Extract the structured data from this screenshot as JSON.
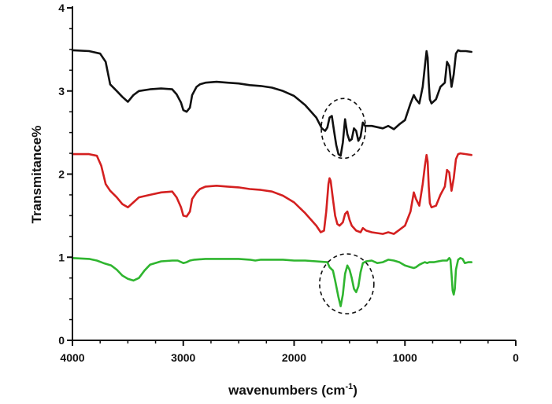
{
  "chart_data": {
    "type": "line",
    "xlabel": "wavenumbers (cm",
    "xlabel_sup": "-1",
    "xlabel_close": ")",
    "ylabel": "Transmitance%",
    "xlim": [
      4000,
      0
    ],
    "ylim": [
      0,
      4
    ],
    "x_reversed": true,
    "x_ticks": [
      4000,
      3000,
      2000,
      1000,
      0
    ],
    "y_ticks": [
      0,
      1,
      2,
      3,
      4
    ],
    "grid": false,
    "series": [
      {
        "color": "#111111",
        "points": [
          [
            4000,
            3.49
          ],
          [
            3850,
            3.48
          ],
          [
            3750,
            3.45
          ],
          [
            3700,
            3.35
          ],
          [
            3660,
            3.08
          ],
          [
            3600,
            3.0
          ],
          [
            3550,
            2.93
          ],
          [
            3500,
            2.87
          ],
          [
            3450,
            2.95
          ],
          [
            3400,
            3.0
          ],
          [
            3300,
            3.02
          ],
          [
            3200,
            3.03
          ],
          [
            3100,
            3.02
          ],
          [
            3060,
            2.96
          ],
          [
            3020,
            2.86
          ],
          [
            3000,
            2.77
          ],
          [
            2970,
            2.75
          ],
          [
            2940,
            2.8
          ],
          [
            2920,
            2.95
          ],
          [
            2880,
            3.05
          ],
          [
            2850,
            3.08
          ],
          [
            2800,
            3.1
          ],
          [
            2700,
            3.11
          ],
          [
            2600,
            3.1
          ],
          [
            2500,
            3.09
          ],
          [
            2400,
            3.07
          ],
          [
            2300,
            3.06
          ],
          [
            2200,
            3.04
          ],
          [
            2100,
            3.0
          ],
          [
            2000,
            2.94
          ],
          [
            1900,
            2.83
          ],
          [
            1800,
            2.68
          ],
          [
            1750,
            2.55
          ],
          [
            1720,
            2.52
          ],
          [
            1700,
            2.56
          ],
          [
            1680,
            2.68
          ],
          [
            1660,
            2.7
          ],
          [
            1640,
            2.52
          ],
          [
            1620,
            2.35
          ],
          [
            1600,
            2.24
          ],
          [
            1580,
            2.22
          ],
          [
            1560,
            2.38
          ],
          [
            1540,
            2.66
          ],
          [
            1520,
            2.48
          ],
          [
            1500,
            2.4
          ],
          [
            1480,
            2.42
          ],
          [
            1460,
            2.55
          ],
          [
            1440,
            2.52
          ],
          [
            1420,
            2.4
          ],
          [
            1400,
            2.45
          ],
          [
            1380,
            2.62
          ],
          [
            1360,
            2.58
          ],
          [
            1300,
            2.58
          ],
          [
            1200,
            2.55
          ],
          [
            1150,
            2.58
          ],
          [
            1100,
            2.54
          ],
          [
            1050,
            2.6
          ],
          [
            1000,
            2.65
          ],
          [
            950,
            2.85
          ],
          [
            920,
            2.95
          ],
          [
            900,
            2.9
          ],
          [
            870,
            2.85
          ],
          [
            840,
            3.05
          ],
          [
            820,
            3.3
          ],
          [
            805,
            3.48
          ],
          [
            795,
            3.4
          ],
          [
            785,
            3.1
          ],
          [
            775,
            2.9
          ],
          [
            760,
            2.85
          ],
          [
            720,
            2.9
          ],
          [
            680,
            3.05
          ],
          [
            640,
            3.1
          ],
          [
            620,
            3.35
          ],
          [
            600,
            3.3
          ],
          [
            580,
            3.05
          ],
          [
            560,
            3.2
          ],
          [
            540,
            3.45
          ],
          [
            520,
            3.49
          ],
          [
            500,
            3.48
          ],
          [
            450,
            3.48
          ],
          [
            400,
            3.47
          ]
        ]
      },
      {
        "color": "#d42020",
        "points": [
          [
            4000,
            2.24
          ],
          [
            3850,
            2.24
          ],
          [
            3780,
            2.22
          ],
          [
            3740,
            2.1
          ],
          [
            3700,
            1.88
          ],
          [
            3660,
            1.8
          ],
          [
            3600,
            1.72
          ],
          [
            3550,
            1.64
          ],
          [
            3500,
            1.6
          ],
          [
            3450,
            1.66
          ],
          [
            3400,
            1.72
          ],
          [
            3300,
            1.75
          ],
          [
            3200,
            1.78
          ],
          [
            3100,
            1.79
          ],
          [
            3060,
            1.72
          ],
          [
            3020,
            1.6
          ],
          [
            3000,
            1.5
          ],
          [
            2970,
            1.49
          ],
          [
            2940,
            1.55
          ],
          [
            2920,
            1.7
          ],
          [
            2880,
            1.78
          ],
          [
            2850,
            1.82
          ],
          [
            2800,
            1.85
          ],
          [
            2700,
            1.86
          ],
          [
            2600,
            1.85
          ],
          [
            2500,
            1.84
          ],
          [
            2400,
            1.82
          ],
          [
            2300,
            1.81
          ],
          [
            2200,
            1.79
          ],
          [
            2100,
            1.74
          ],
          [
            2000,
            1.66
          ],
          [
            1900,
            1.53
          ],
          [
            1800,
            1.38
          ],
          [
            1760,
            1.3
          ],
          [
            1730,
            1.32
          ],
          [
            1710,
            1.55
          ],
          [
            1690,
            1.88
          ],
          [
            1680,
            1.95
          ],
          [
            1670,
            1.92
          ],
          [
            1650,
            1.7
          ],
          [
            1630,
            1.5
          ],
          [
            1610,
            1.4
          ],
          [
            1590,
            1.38
          ],
          [
            1560,
            1.42
          ],
          [
            1540,
            1.52
          ],
          [
            1520,
            1.55
          ],
          [
            1500,
            1.45
          ],
          [
            1480,
            1.38
          ],
          [
            1460,
            1.35
          ],
          [
            1440,
            1.32
          ],
          [
            1400,
            1.3
          ],
          [
            1380,
            1.35
          ],
          [
            1350,
            1.32
          ],
          [
            1300,
            1.3
          ],
          [
            1200,
            1.28
          ],
          [
            1150,
            1.3
          ],
          [
            1100,
            1.28
          ],
          [
            1050,
            1.33
          ],
          [
            1000,
            1.38
          ],
          [
            950,
            1.55
          ],
          [
            920,
            1.78
          ],
          [
            900,
            1.7
          ],
          [
            870,
            1.62
          ],
          [
            840,
            1.88
          ],
          [
            820,
            2.1
          ],
          [
            805,
            2.23
          ],
          [
            795,
            2.15
          ],
          [
            785,
            1.85
          ],
          [
            775,
            1.65
          ],
          [
            760,
            1.6
          ],
          [
            720,
            1.62
          ],
          [
            680,
            1.75
          ],
          [
            640,
            1.85
          ],
          [
            620,
            2.05
          ],
          [
            600,
            2.02
          ],
          [
            580,
            1.8
          ],
          [
            560,
            1.95
          ],
          [
            540,
            2.18
          ],
          [
            520,
            2.24
          ],
          [
            500,
            2.25
          ],
          [
            450,
            2.24
          ],
          [
            400,
            2.23
          ]
        ]
      },
      {
        "color": "#2fb52f",
        "points": [
          [
            4000,
            0.99
          ],
          [
            3850,
            0.98
          ],
          [
            3780,
            0.96
          ],
          [
            3720,
            0.93
          ],
          [
            3650,
            0.9
          ],
          [
            3600,
            0.85
          ],
          [
            3550,
            0.78
          ],
          [
            3500,
            0.74
          ],
          [
            3450,
            0.72
          ],
          [
            3400,
            0.75
          ],
          [
            3350,
            0.84
          ],
          [
            3300,
            0.91
          ],
          [
            3200,
            0.95
          ],
          [
            3100,
            0.96
          ],
          [
            3050,
            0.96
          ],
          [
            3000,
            0.93
          ],
          [
            2970,
            0.94
          ],
          [
            2940,
            0.96
          ],
          [
            2900,
            0.97
          ],
          [
            2800,
            0.98
          ],
          [
            2700,
            0.98
          ],
          [
            2600,
            0.98
          ],
          [
            2500,
            0.98
          ],
          [
            2400,
            0.97
          ],
          [
            2350,
            0.96
          ],
          [
            2300,
            0.97
          ],
          [
            2200,
            0.97
          ],
          [
            2100,
            0.97
          ],
          [
            2000,
            0.96
          ],
          [
            1900,
            0.96
          ],
          [
            1800,
            0.95
          ],
          [
            1700,
            0.94
          ],
          [
            1680,
            0.88
          ],
          [
            1650,
            0.84
          ],
          [
            1630,
            0.72
          ],
          [
            1600,
            0.52
          ],
          [
            1580,
            0.41
          ],
          [
            1560,
            0.55
          ],
          [
            1540,
            0.8
          ],
          [
            1520,
            0.9
          ],
          [
            1500,
            0.85
          ],
          [
            1480,
            0.75
          ],
          [
            1460,
            0.62
          ],
          [
            1440,
            0.58
          ],
          [
            1420,
            0.65
          ],
          [
            1400,
            0.82
          ],
          [
            1380,
            0.93
          ],
          [
            1350,
            0.95
          ],
          [
            1300,
            0.96
          ],
          [
            1250,
            0.93
          ],
          [
            1200,
            0.94
          ],
          [
            1150,
            0.97
          ],
          [
            1100,
            0.96
          ],
          [
            1050,
            0.94
          ],
          [
            1000,
            0.9
          ],
          [
            950,
            0.88
          ],
          [
            920,
            0.87
          ],
          [
            900,
            0.88
          ],
          [
            870,
            0.91
          ],
          [
            840,
            0.93
          ],
          [
            820,
            0.94
          ],
          [
            800,
            0.93
          ],
          [
            780,
            0.94
          ],
          [
            740,
            0.94
          ],
          [
            700,
            0.95
          ],
          [
            660,
            0.96
          ],
          [
            620,
            0.96
          ],
          [
            600,
            0.99
          ],
          [
            590,
            0.97
          ],
          [
            580,
            0.8
          ],
          [
            570,
            0.6
          ],
          [
            560,
            0.55
          ],
          [
            550,
            0.62
          ],
          [
            540,
            0.85
          ],
          [
            520,
            0.97
          ],
          [
            500,
            0.99
          ],
          [
            480,
            0.98
          ],
          [
            460,
            0.93
          ],
          [
            430,
            0.94
          ],
          [
            400,
            0.94
          ]
        ]
      }
    ],
    "annotations": [
      {
        "shape": "dashed-ellipse",
        "cx": 1555,
        "cy": 2.55,
        "rx": 200,
        "ry": 0.36
      },
      {
        "shape": "dashed-ellipse",
        "cx": 1525,
        "cy": 0.68,
        "rx": 245,
        "ry": 0.36
      }
    ]
  }
}
